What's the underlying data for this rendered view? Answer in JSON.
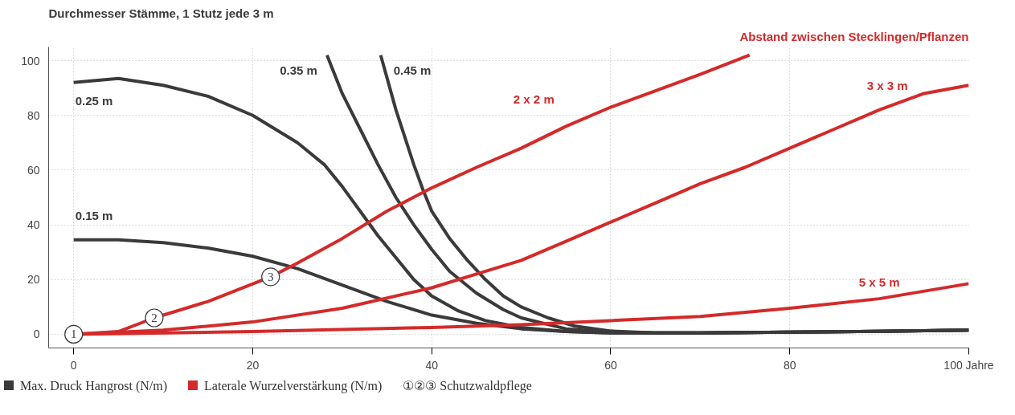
{
  "chart_data": {
    "type": "line",
    "title": "Durchmesser Stämme, 1 Stutz jede 3 m",
    "subtitle": "Abstand zwischen Stecklingen/Pflanzen",
    "xlim": [
      -2.8,
      100
    ],
    "xticks": [
      0,
      20,
      40,
      60,
      80,
      {
        "value": 100,
        "label": "100 Jahre"
      }
    ],
    "ylim": [
      -5,
      105
    ],
    "yticks": [
      0,
      20,
      40,
      60,
      80,
      100
    ],
    "grid": true,
    "line_style": "solid",
    "series": [
      {
        "name": "0.25 m",
        "color": "#3a3a3a",
        "x": [
          0,
          5,
          10,
          15,
          20,
          25,
          28,
          30,
          32,
          34,
          36,
          38,
          40,
          43,
          46,
          50,
          55,
          60,
          70,
          80,
          90,
          100
        ],
        "values": [
          92,
          93.5,
          91,
          87,
          80,
          70,
          62,
          54,
          45,
          36,
          28,
          20,
          14,
          8.5,
          5,
          2.5,
          1,
          0.5,
          0.5,
          0.8,
          1.1,
          1.5
        ]
      },
      {
        "name": "0.15 m",
        "color": "#3a3a3a",
        "x": [
          0,
          5,
          10,
          15,
          20,
          25,
          30,
          35,
          40,
          45,
          50,
          55,
          60,
          70,
          80,
          90,
          100
        ],
        "values": [
          34.5,
          34.5,
          33.5,
          31.5,
          28.5,
          24,
          18,
          12,
          7,
          4,
          2,
          1,
          0.5,
          0.5,
          0.8,
          1.1,
          1.5
        ]
      },
      {
        "name": "0.35 m",
        "color": "#3a3a3a",
        "x": [
          28.3,
          30,
          32,
          34,
          36,
          38,
          40,
          42,
          45,
          48,
          50,
          55,
          60,
          65,
          70,
          80,
          90,
          100
        ],
        "values": [
          102,
          88,
          75,
          62,
          50,
          40,
          31,
          23,
          15,
          9,
          6,
          2,
          0.8,
          0.5,
          0.5,
          0.8,
          1.1,
          1.5
        ]
      },
      {
        "name": "0.45 m",
        "color": "#3a3a3a",
        "x": [
          34.3,
          36,
          38,
          39,
          40,
          42,
          44,
          46,
          48,
          50,
          53,
          56,
          60,
          65,
          70,
          80,
          90,
          100
        ],
        "values": [
          102,
          82,
          62,
          53,
          45,
          35,
          27,
          20,
          14,
          10,
          6,
          3,
          1.2,
          0.5,
          0.5,
          0.8,
          1.1,
          1.5
        ]
      },
      {
        "name": "2 x 2 m",
        "color": "#d42a2a",
        "x": [
          0,
          5,
          9,
          15,
          22,
          25,
          30,
          35,
          40,
          45,
          50,
          55,
          60,
          65,
          70,
          75.5
        ],
        "values": [
          0,
          1,
          6,
          12,
          21,
          26,
          35,
          45,
          53.5,
          61,
          68,
          76,
          83,
          89,
          95,
          102
        ]
      },
      {
        "name": "3 x 3 m",
        "color": "#d42a2a",
        "x": [
          0,
          10,
          20,
          30,
          40,
          45,
          50,
          55,
          60,
          65,
          70,
          75,
          80,
          85,
          90,
          95,
          100
        ],
        "values": [
          0,
          1.5,
          4.5,
          9.5,
          17,
          22,
          27,
          34,
          41,
          48,
          55,
          61,
          68,
          75,
          82,
          88,
          91
        ]
      },
      {
        "name": "5 x 5 m",
        "color": "#d42a2a",
        "x": [
          0,
          20,
          40,
          50,
          60,
          70,
          80,
          90,
          100
        ],
        "values": [
          0,
          1,
          2.5,
          3.5,
          5,
          6.5,
          9.5,
          13,
          18.5
        ]
      }
    ],
    "annotations": [
      {
        "text": "1",
        "x": 0,
        "y": 0
      },
      {
        "text": "2",
        "x": 9,
        "y": 6
      },
      {
        "text": "3",
        "x": 22,
        "y": 21
      },
      "Max. Druck Hangrost (N/m)",
      "Laterale Wurzelverstärkung (N/m)",
      "①②③ Schutzwaldpflege"
    ]
  }
}
